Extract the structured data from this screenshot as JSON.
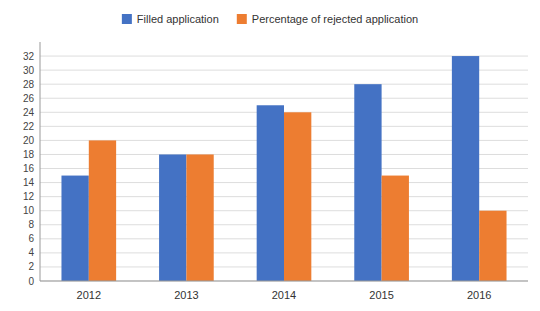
{
  "chart_data": {
    "type": "bar",
    "categories": [
      "2012",
      "2013",
      "2014",
      "2015",
      "2016"
    ],
    "series": [
      {
        "name": "Filled application",
        "color": "#4472C4",
        "values": [
          15,
          18,
          25,
          28,
          32
        ]
      },
      {
        "name": "Percentage of rejected application",
        "color": "#ED7D31",
        "values": [
          20,
          18,
          24,
          15,
          10
        ]
      }
    ],
    "ylim": [
      0,
      34
    ],
    "yticks": [
      0,
      2,
      4,
      6,
      8,
      10,
      12,
      14,
      16,
      18,
      20,
      22,
      24,
      26,
      28,
      30,
      32
    ],
    "grid": true,
    "legend": "top"
  }
}
